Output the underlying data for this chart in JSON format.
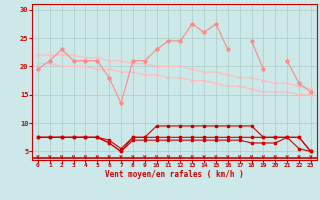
{
  "x": [
    0,
    1,
    2,
    3,
    4,
    5,
    6,
    7,
    8,
    9,
    10,
    11,
    12,
    13,
    14,
    15,
    16,
    17,
    18,
    19,
    20,
    21,
    22,
    23
  ],
  "line1": [
    19.5,
    21.0,
    23.0,
    21.0,
    21.0,
    21.0,
    18.0,
    13.5,
    21.0,
    21.0,
    23.0,
    24.5,
    24.5,
    27.5,
    26.0,
    27.5,
    23.0,
    null,
    24.5,
    19.5,
    null,
    21.0,
    17.0,
    15.5
  ],
  "line2_top": [
    22.0,
    22.0,
    22.0,
    22.0,
    21.5,
    21.5,
    21.0,
    21.0,
    20.5,
    20.5,
    20.0,
    20.0,
    20.0,
    19.5,
    19.0,
    19.0,
    18.5,
    18.0,
    18.0,
    17.5,
    17.0,
    17.0,
    16.5,
    16.0
  ],
  "line2_bot": [
    20.5,
    20.5,
    20.0,
    20.0,
    20.0,
    19.5,
    19.5,
    19.0,
    19.0,
    18.5,
    18.5,
    18.0,
    18.0,
    17.5,
    17.5,
    17.0,
    16.5,
    16.5,
    16.0,
    15.5,
    15.5,
    15.5,
    15.0,
    15.0
  ],
  "line3": [
    7.5,
    7.5,
    7.5,
    7.5,
    7.5,
    7.5,
    6.5,
    5.0,
    7.5,
    7.5,
    7.5,
    7.5,
    7.5,
    7.5,
    7.5,
    7.5,
    7.5,
    7.5,
    7.5,
    7.5,
    7.5,
    7.5,
    7.5,
    5.0
  ],
  "line4": [
    7.5,
    7.5,
    7.5,
    7.5,
    7.5,
    7.5,
    7.0,
    5.5,
    7.5,
    7.5,
    9.5,
    9.5,
    9.5,
    9.5,
    9.5,
    9.5,
    9.5,
    9.5,
    9.5,
    7.5,
    7.5,
    7.5,
    7.5,
    5.0
  ],
  "line5": [
    7.5,
    7.5,
    7.5,
    7.5,
    7.5,
    7.5,
    6.5,
    5.0,
    7.0,
    7.0,
    7.0,
    7.0,
    7.0,
    7.0,
    7.0,
    7.0,
    7.0,
    7.0,
    6.5,
    6.5,
    6.5,
    7.5,
    5.5,
    5.0
  ],
  "bg_color": "#cce8e8",
  "grid_color": "#aacccc",
  "line1_color": "#ff8888",
  "line2_color": "#ffbbbb",
  "line3_color": "#cc0000",
  "xlabel": "Vent moyen/en rafales ( km/h )",
  "yticks": [
    5,
    10,
    15,
    20,
    25,
    30
  ],
  "xticks": [
    0,
    1,
    2,
    3,
    4,
    5,
    6,
    7,
    8,
    9,
    10,
    11,
    12,
    13,
    14,
    15,
    16,
    17,
    18,
    19,
    20,
    21,
    22,
    23
  ],
  "ylim": [
    3.5,
    31.0
  ],
  "xlim": [
    -0.5,
    23.5
  ]
}
